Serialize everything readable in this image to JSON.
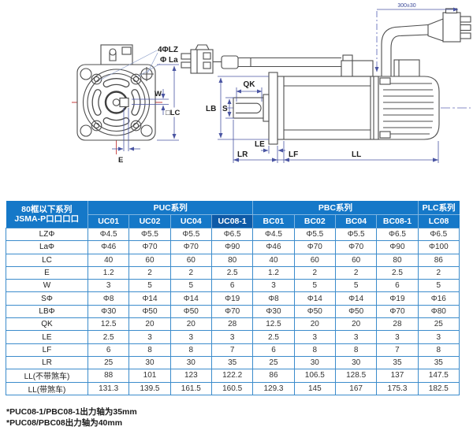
{
  "colors": {
    "header_blue": "#1578c8",
    "header_blue_dark": "#0d5aa7",
    "grid_blue": "#3c8ccc",
    "dim_line": "#4a55a2",
    "center_line_red": "#c43d3d",
    "drawing_line": "#4d4d4d"
  },
  "front_view": {
    "labels": {
      "bolt_holes": "4ΦLZ",
      "la": "Φ La",
      "w": "W",
      "lc": "□LC",
      "e": "E"
    }
  },
  "side_view": {
    "labels": {
      "qk": "QK",
      "lb": "LB",
      "s": "S",
      "le": "LE",
      "lr": "LR",
      "lf": "LF",
      "ll": "LL",
      "cable_length": "300±30"
    }
  },
  "table": {
    "corner": {
      "line1": "80框以下系列",
      "line2": "JSMA-P口口口口"
    },
    "groups": [
      {
        "label": "PUC系列",
        "span": 4
      },
      {
        "label": "PBC系列",
        "span": 4
      },
      {
        "label": "PLC系列",
        "span": 1
      }
    ],
    "models": [
      "UC01",
      "UC02",
      "UC04",
      "UC08-1",
      "BC01",
      "BC02",
      "BC04",
      "BC08-1",
      "LC08"
    ],
    "highlight_model": "UC08-1",
    "rows": [
      {
        "param": "LZΦ",
        "values": [
          "Φ4.5",
          "Φ5.5",
          "Φ5.5",
          "Φ6.5",
          "Φ4.5",
          "Φ5.5",
          "Φ5.5",
          "Φ6.5",
          "Φ6.5"
        ]
      },
      {
        "param": "LaΦ",
        "values": [
          "Φ46",
          "Φ70",
          "Φ70",
          "Φ90",
          "Φ46",
          "Φ70",
          "Φ70",
          "Φ90",
          "Φ100"
        ]
      },
      {
        "param": "LC",
        "values": [
          "40",
          "60",
          "60",
          "80",
          "40",
          "60",
          "60",
          "80",
          "86"
        ]
      },
      {
        "param": "E",
        "values": [
          "1.2",
          "2",
          "2",
          "2.5",
          "1.2",
          "2",
          "2",
          "2.5",
          "2"
        ]
      },
      {
        "param": "W",
        "values": [
          "3",
          "5",
          "5",
          "6",
          "3",
          "5",
          "5",
          "6",
          "5"
        ]
      },
      {
        "param": "SΦ",
        "values": [
          "Φ8",
          "Φ14",
          "Φ14",
          "Φ19",
          "Φ8",
          "Φ14",
          "Φ14",
          "Φ19",
          "Φ16"
        ]
      },
      {
        "param": "LBΦ",
        "values": [
          "Φ30",
          "Φ50",
          "Φ50",
          "Φ70",
          "Φ30",
          "Φ50",
          "Φ50",
          "Φ70",
          "Φ80"
        ]
      },
      {
        "param": "QK",
        "values": [
          "12.5",
          "20",
          "20",
          "28",
          "12.5",
          "20",
          "20",
          "28",
          "25"
        ]
      },
      {
        "param": "LE",
        "values": [
          "2.5",
          "3",
          "3",
          "3",
          "2.5",
          "3",
          "3",
          "3",
          "3"
        ]
      },
      {
        "param": "LF",
        "values": [
          "6",
          "8",
          "8",
          "7",
          "6",
          "8",
          "8",
          "7",
          "8"
        ]
      },
      {
        "param": "LR",
        "values": [
          "25",
          "30",
          "30",
          "35",
          "25",
          "30",
          "30",
          "35",
          "35"
        ]
      },
      {
        "param": "LL(不带煞车)",
        "values": [
          "88",
          "101",
          "123",
          "122.2",
          "86",
          "106.5",
          "128.5",
          "137",
          "147.5"
        ]
      },
      {
        "param": "LL(带煞车)",
        "values": [
          "131.3",
          "139.5",
          "161.5",
          "160.5",
          "129.3",
          "145",
          "167",
          "175.3",
          "182.5"
        ]
      }
    ]
  },
  "footnotes": [
    "*PUC08-1/PBC08-1出力轴为35mm",
    "*PUC08/PBC08出力轴为40mm"
  ]
}
